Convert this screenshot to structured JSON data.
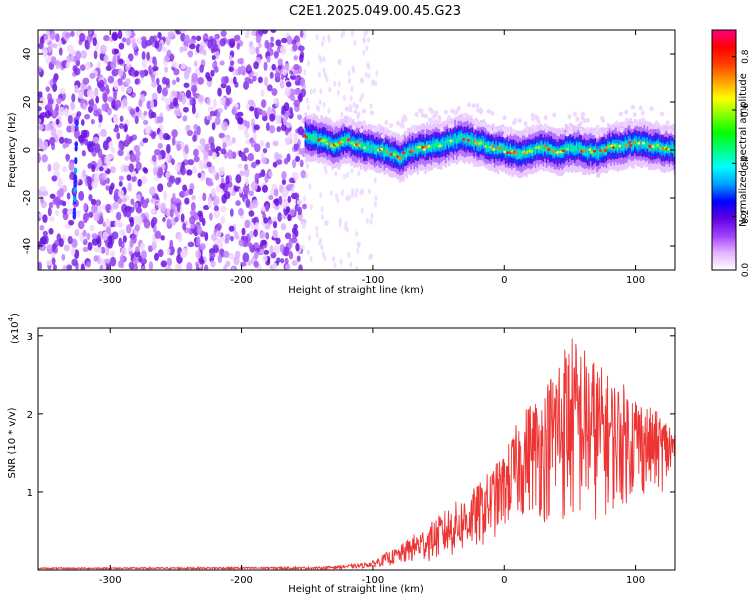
{
  "title": "C2E1.2025.049.00.45.G23",
  "chart_data": [
    {
      "type": "heatmap",
      "description_of_axes": "spectrogram",
      "xlabel": "Height of straight line (km)",
      "ylabel": "Frequency (Hz)",
      "xlim": [
        -355,
        130
      ],
      "ylim": [
        -50,
        50
      ],
      "xticks": [
        -300,
        -200,
        -100,
        0,
        100
      ],
      "xtick_labels": [
        "-300",
        "-200",
        "-100",
        "0",
        "100"
      ],
      "yticks": [
        -40,
        -20,
        0,
        20,
        40
      ],
      "ytick_labels": [
        "-40",
        "-20",
        "0",
        "20",
        "40"
      ],
      "colorbar": {
        "label": "Normalized spectral amplitude",
        "range": [
          0,
          0.9
        ],
        "ticks": [
          0.0,
          0.2,
          0.4,
          0.6,
          0.8
        ],
        "tick_labels": [
          "0.0",
          "0.2",
          "0.4",
          "0.6",
          "0.8"
        ],
        "colormap": [
          "#ffffff",
          "#e6b3ff",
          "#a040ff",
          "#6000e0",
          "#0000ff",
          "#00a0ff",
          "#00ffff",
          "#00ff80",
          "#00ff00",
          "#80ff00",
          "#ffff00",
          "#ffa000",
          "#ff4000",
          "#ff0000",
          "#ff0080"
        ]
      },
      "noise_region_x": [
        -355,
        -152
      ],
      "signal_ridge": {
        "x": [
          -152,
          -140,
          -130,
          -120,
          -110,
          -100,
          -90,
          -80,
          -70,
          -60,
          -50,
          -40,
          -30,
          -20,
          -10,
          0,
          10,
          20,
          30,
          40,
          50,
          60,
          70,
          80,
          90,
          100,
          110,
          120,
          130
        ],
        "freq": [
          6,
          4,
          2,
          4,
          2,
          1,
          -1,
          -3,
          0,
          1,
          2,
          4,
          5,
          3,
          1,
          0,
          -2,
          0,
          1,
          -1,
          1,
          0,
          -1,
          1,
          2,
          3,
          2,
          1,
          0
        ]
      }
    },
    {
      "type": "line",
      "xlabel": "Height of straight line (km)",
      "ylabel": "SNR (10 * v/v)",
      "y_scale_label": "(x10",
      "y_scale_exp": "4",
      "y_scale_close": ")",
      "xlim": [
        -355,
        130
      ],
      "ylim": [
        0,
        3.1
      ],
      "xticks": [
        -300,
        -200,
        -100,
        0,
        100
      ],
      "xtick_labels": [
        "-300",
        "-200",
        "-100",
        "0",
        "100"
      ],
      "yticks": [
        1,
        2,
        3
      ],
      "ytick_labels": [
        "1",
        "2",
        "3"
      ],
      "color": "#ee3333",
      "envelope": {
        "x": [
          -355,
          -140,
          -110,
          -100,
          -90,
          -80,
          -70,
          -60,
          -50,
          -40,
          -30,
          -20,
          -10,
          0,
          10,
          20,
          30,
          40,
          50,
          60,
          70,
          80,
          90,
          100,
          110,
          120,
          130
        ],
        "upper": [
          0.03,
          0.04,
          0.08,
          0.12,
          0.22,
          0.3,
          0.45,
          0.55,
          0.7,
          0.85,
          0.95,
          1.1,
          1.3,
          1.5,
          1.9,
          2.2,
          2.3,
          2.8,
          3.05,
          2.9,
          2.7,
          2.5,
          2.4,
          2.3,
          2.1,
          2.0,
          1.9
        ],
        "lower": [
          0.01,
          0.01,
          0.02,
          0.03,
          0.05,
          0.06,
          0.08,
          0.1,
          0.12,
          0.15,
          0.2,
          0.25,
          0.35,
          0.5,
          0.6,
          0.7,
          0.6,
          0.55,
          0.5,
          0.55,
          0.6,
          0.7,
          0.8,
          0.9,
          0.95,
          1.0,
          1.05
        ]
      }
    }
  ]
}
